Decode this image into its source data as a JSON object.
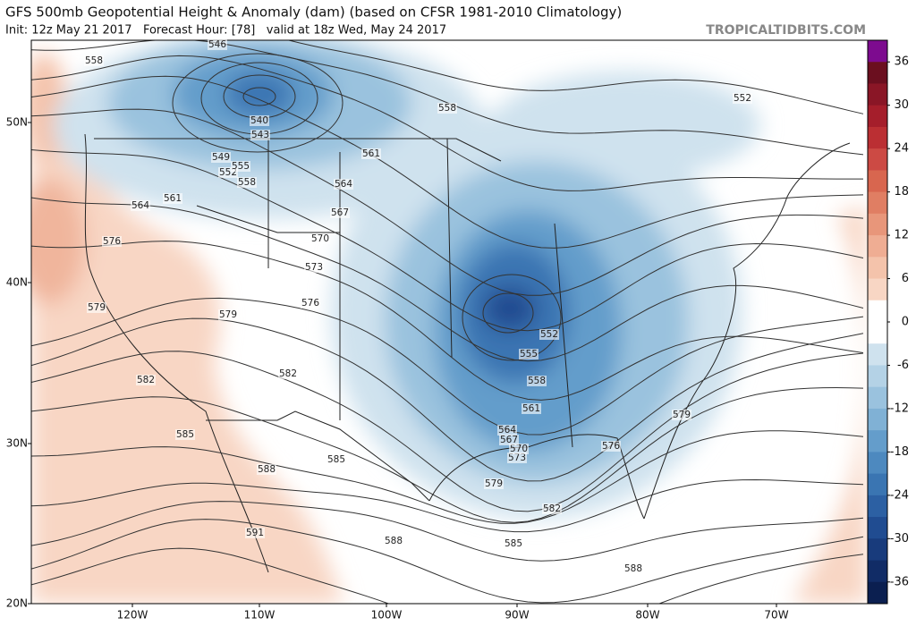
{
  "header": {
    "title": "GFS 500mb Geopotential Height & Anomaly (dam) (based on CFSR 1981-2010 Climatology)",
    "subtitle": "Init: 12z May 21 2017   Forecast Hour: [78]   valid at 18z Wed, May 24 2017",
    "brand": "TROPICALTIDBITS.COM"
  },
  "map": {
    "lat_labels": [
      "50N",
      "40N",
      "30N",
      "20N"
    ],
    "lon_labels": [
      "120W",
      "110W",
      "100W",
      "90W",
      "80W",
      "70W"
    ],
    "contour_labels": [
      558,
      546,
      540,
      543,
      549,
      552,
      555,
      558,
      561,
      564,
      558,
      561,
      564,
      567,
      570,
      573,
      576,
      576,
      579,
      579,
      582,
      582,
      585,
      585,
      588,
      591,
      588,
      585,
      582,
      579,
      576,
      579,
      573,
      570,
      567,
      564,
      561,
      558,
      555,
      552,
      552,
      588
    ]
  },
  "colorbar": {
    "lim": [
      -39,
      39
    ],
    "ticks": [
      36,
      30,
      24,
      18,
      12,
      6,
      0,
      -6,
      -12,
      -18,
      -24,
      -30,
      -36
    ],
    "colors": [
      "#7d0b8f",
      "#6b0f1f",
      "#8a1626",
      "#a51e2b",
      "#bb2f33",
      "#cc4a44",
      "#d8664f",
      "#e07e63",
      "#e8967a",
      "#efad93",
      "#f4c3ab",
      "#f8d6c4",
      "#ffffff",
      "#ffffff",
      "#cfe2ee",
      "#b4d2e6",
      "#9ac2de",
      "#80b1d5",
      "#649dcb",
      "#4d89bf",
      "#3a75b2",
      "#2c60a3",
      "#204c91",
      "#183b7c",
      "#112c66",
      "#0b1f50"
    ]
  }
}
